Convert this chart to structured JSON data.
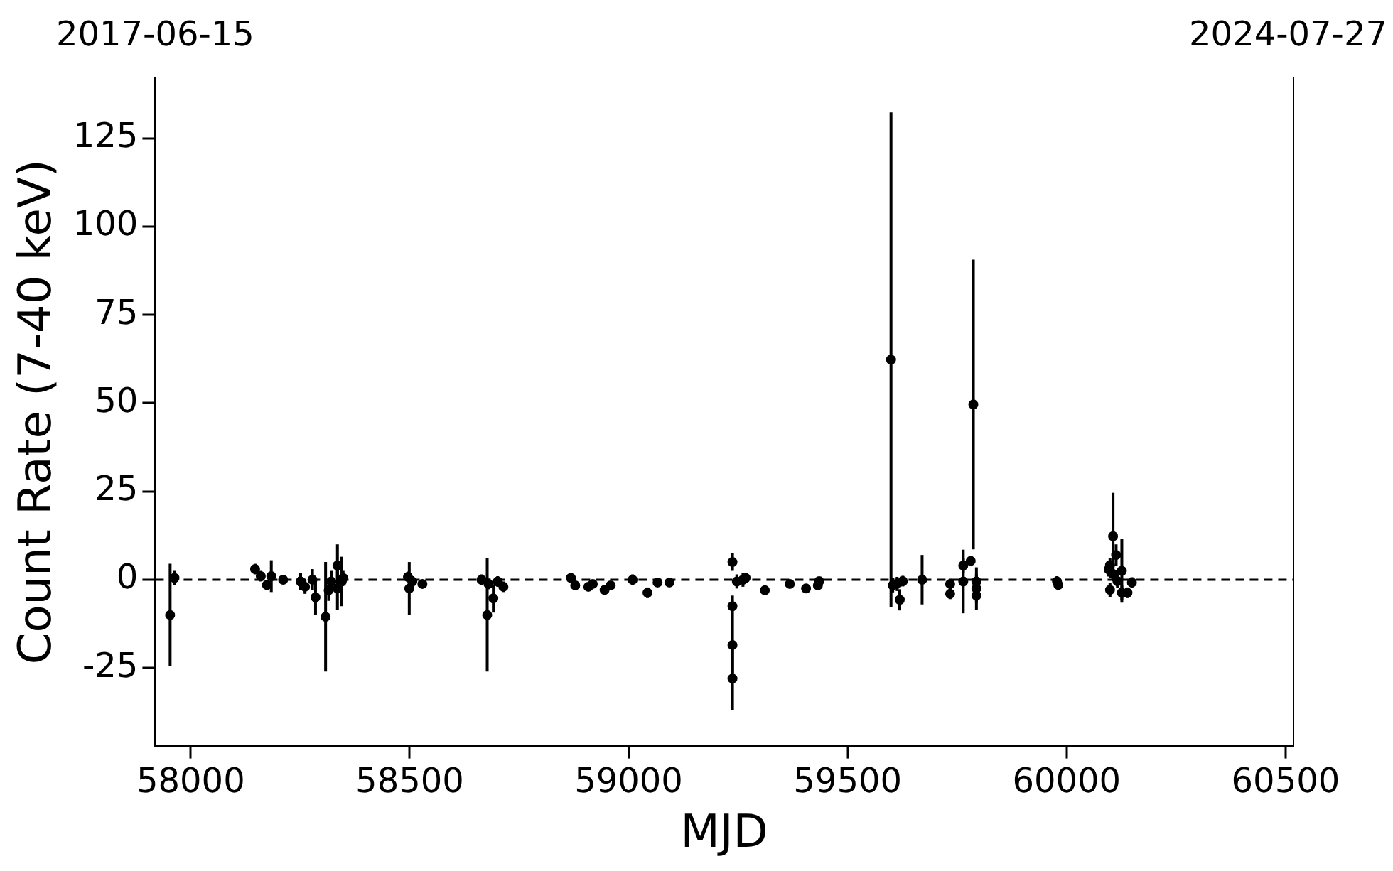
{
  "chart_data": {
    "type": "scatter",
    "xlabel": "MJD",
    "ylabel": "Count Rate (7-40 keV)",
    "color": "#000000",
    "marker": "circle",
    "legend": false,
    "grid": false,
    "xlim": [
      57919,
      60518
    ],
    "xticks": [
      58000,
      58500,
      59000,
      59500,
      60000,
      60500
    ],
    "annotations": [
      "2017-06-15",
      "2024-07-27"
    ],
    "ylim": [
      -47,
      142
    ],
    "yticks": [
      -25,
      0,
      25,
      50,
      75,
      100,
      125
    ],
    "ref_lines": [
      {
        "axis": "y",
        "value": 0,
        "line_style": "dashed",
        "color": "#000000"
      }
    ],
    "x": [
      57953,
      57963,
      58147,
      58160,
      58174,
      58184,
      58211,
      58251,
      58261,
      58278,
      58285,
      58308,
      58315,
      58321,
      58335,
      58335,
      58345,
      58348,
      58496,
      58499,
      58506,
      58529,
      58664,
      58677,
      58680,
      58691,
      58701,
      58714,
      58868,
      58878,
      58908,
      58918,
      58945,
      58959,
      59009,
      59043,
      59066,
      59093,
      59237,
      59237,
      59237,
      59237,
      59247,
      59261,
      59267,
      59311,
      59368,
      59405,
      59432,
      59435,
      59599,
      59603,
      59613,
      59619,
      59626,
      59670,
      59734,
      59734,
      59764,
      59764,
      59781,
      59787,
      59794,
      59794,
      59794,
      59978,
      59981,
      60096,
      60099,
      60099,
      60106,
      60106,
      60113,
      60116,
      60126,
      60126,
      60139,
      60149
    ],
    "values": [
      -10,
      0.5,
      3,
      1,
      -1.5,
      1,
      0,
      -0.5,
      -2,
      0,
      -5,
      -10.5,
      -3,
      -0.5,
      4,
      -2.5,
      -0.5,
      0.5,
      0.8,
      -2.5,
      -0.5,
      -1.2,
      0,
      -10,
      -1.2,
      -5.3,
      -0.5,
      -2,
      0.5,
      -1.6,
      -2,
      -1.2,
      -2.9,
      -1.6,
      0,
      -3.7,
      -0.8,
      -0.8,
      5,
      -7.5,
      -18.5,
      -28,
      -0.5,
      0,
      0.5,
      -3,
      -1.2,
      -2.5,
      -1.6,
      -0.4,
      62.3,
      -1.6,
      -1.2,
      -5.7,
      -0.4,
      0,
      -1.2,
      -4,
      4,
      -0.5,
      5.3,
      49.6,
      -0.5,
      -2.5,
      -4.5,
      -0.5,
      -1.5,
      2.9,
      4.1,
      -2.9,
      12.3,
      1.6,
      7,
      -0.4,
      2.5,
      -3.7,
      -3.7,
      -0.8
    ],
    "errors": [
      14.5,
      2,
      1.5,
      1.5,
      1.5,
      4.5,
      1,
      2.5,
      2,
      3,
      5,
      15.5,
      3,
      3,
      6,
      6,
      7,
      2,
      1.5,
      7.5,
      1.5,
      1,
      1.5,
      16,
      1.5,
      4,
      1.5,
      1.5,
      1,
      1,
      1,
      1,
      1,
      1,
      1.5,
      1.5,
      1,
      1,
      2.5,
      3,
      8,
      9,
      2,
      2,
      1.5,
      1,
      1,
      1,
      1,
      1,
      70,
      2,
      2,
      3,
      1.5,
      7,
      1.5,
      1.5,
      2,
      9,
      1.5,
      41,
      4,
      4,
      4,
      1.5,
      1.5,
      2,
      2,
      2,
      12.3,
      2,
      3,
      2,
      9,
      2,
      1.5,
      1.5
    ]
  }
}
